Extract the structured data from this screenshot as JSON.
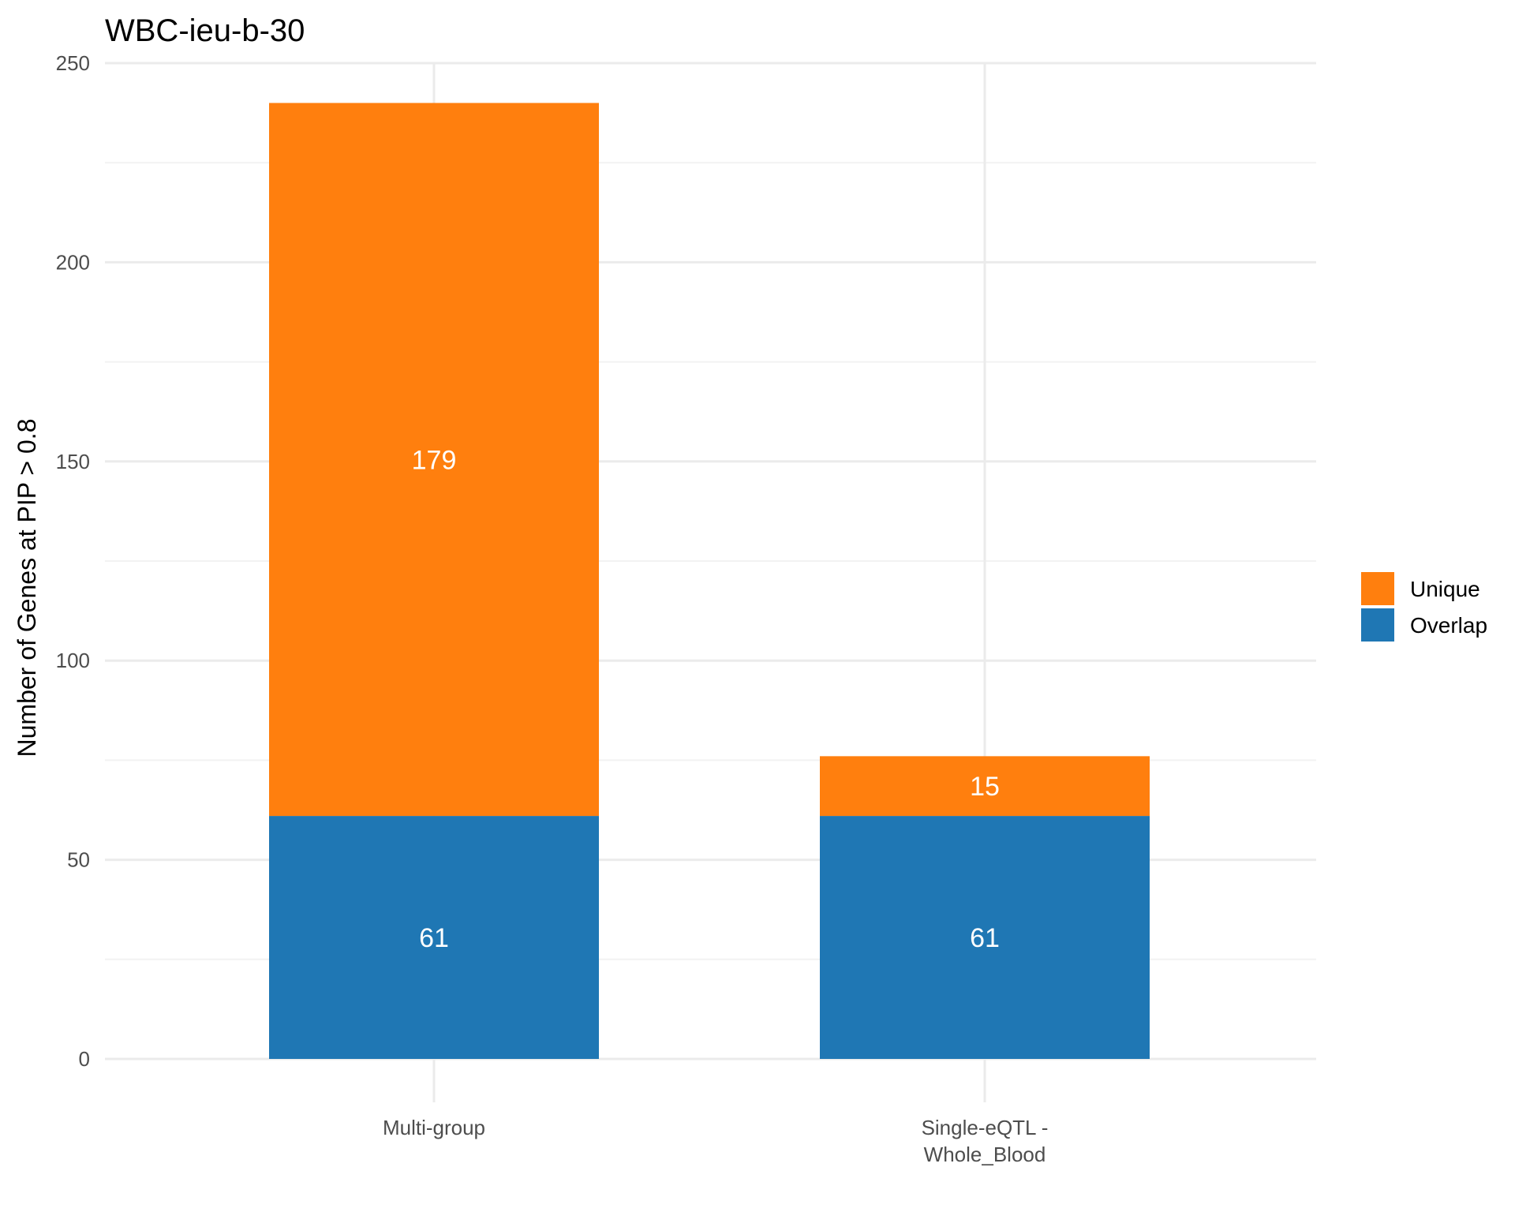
{
  "chart_data": {
    "type": "bar",
    "stacked": true,
    "title": "WBC-ieu-b-30",
    "xlabel": "",
    "ylabel": "Number of Genes at PIP > 0.8",
    "categories": [
      [
        "Multi-group"
      ],
      [
        "Single-eQTL -",
        "Whole_Blood"
      ]
    ],
    "series": [
      {
        "name": "Overlap",
        "color": "#1f77b4",
        "values": [
          61,
          61
        ]
      },
      {
        "name": "Unique",
        "color": "#ff7f0e",
        "values": [
          179,
          15
        ]
      }
    ],
    "ylim": [
      0,
      250
    ],
    "yticks": [
      0,
      50,
      100,
      150,
      200,
      250
    ],
    "grid": true,
    "legend": {
      "position": "right",
      "order": [
        "Unique",
        "Overlap"
      ]
    }
  }
}
